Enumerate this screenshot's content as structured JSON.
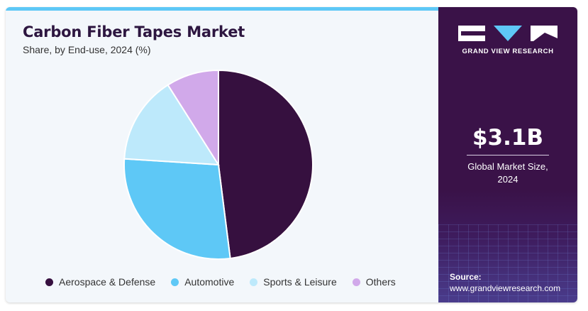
{
  "chart_data": {
    "type": "pie",
    "title": "Carbon Fiber Tapes Market",
    "subtitle": "Share, by End-use, 2024 (%)",
    "categories": [
      "Aerospace & Defense",
      "Automotive",
      "Sports & Leisure",
      "Others"
    ],
    "values": [
      48,
      28,
      15,
      9
    ],
    "colors": [
      "#36103f",
      "#5ec8f6",
      "#bde9fb",
      "#d1a9ea"
    ],
    "legend_position": "bottom"
  },
  "sidebar": {
    "brand": "GRAND VIEW RESEARCH",
    "market_size": "$3.1B",
    "market_caption_line1": "Global Market Size,",
    "market_caption_line2": "2024",
    "source_label": "Source:",
    "source_url": "www.grandviewresearch.com"
  }
}
